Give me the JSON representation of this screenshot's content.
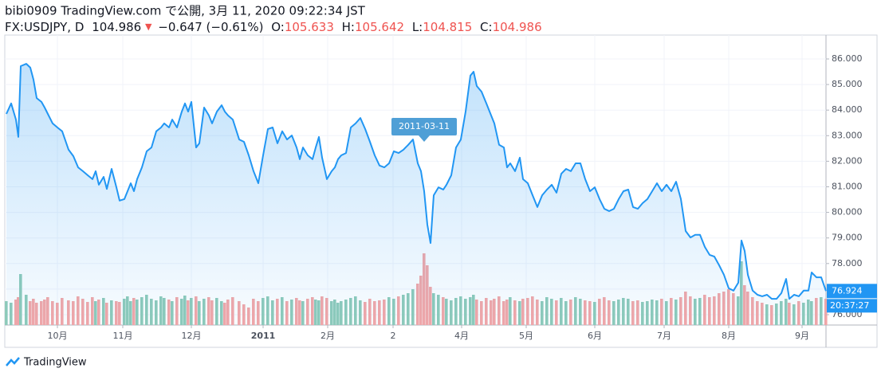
{
  "header": {
    "publisher": "bibi0909 TradingView.com で公開, 3月 11, 2020 09:22:34 JST",
    "symbol": "FX:USDJPY, D",
    "last": "104.986",
    "arrow": "▼",
    "change": "−0.647 (−0.61%)",
    "open_label": "O:",
    "open": "105.633",
    "high_label": "H:",
    "high": "105.642",
    "low_label": "L:",
    "low": "104.815",
    "close_label": "C:",
    "close": "104.986"
  },
  "footer": {
    "brand": "TradingView"
  },
  "chart_data": {
    "type": "area",
    "color": "#2196f3",
    "grid": true,
    "x": [
      0,
      1.5,
      3,
      3.75,
      4.5,
      6.25,
      7.5,
      8.5,
      9.5,
      11,
      12,
      13,
      14.5,
      16,
      17.5,
      19.5,
      21,
      22.5,
      24,
      25.5,
      27,
      28,
      29,
      30.5,
      31.5,
      33,
      34.5,
      35.5,
      37,
      38,
      39,
      40,
      41,
      42.5,
      44,
      45.5,
      47,
      48.5,
      49.5,
      51,
      52,
      53.5,
      55,
      56,
      57,
      58,
      59.5,
      60.5,
      62,
      63.5,
      64.5,
      66,
      67.5,
      68.5,
      69.5,
      71,
      73,
      74.5,
      76,
      77.5,
      79,
      80.5,
      82,
      83.5,
      85,
      86.5,
      88,
      89.5,
      91,
      92,
      93,
      94.5,
      96,
      97,
      98,
      99,
      100.5,
      102,
      103,
      104,
      105,
      106.5,
      108,
      109.5,
      111,
      112.5,
      114,
      115.5,
      117,
      118.5,
      120,
      121.5,
      123,
      124.5,
      126,
      127.5,
      129,
      130,
      131,
      132,
      133,
      134,
      135.5,
      137,
      138,
      139.5,
      141,
      142.5,
      144,
      145.5,
      146.5,
      147.5,
      149,
      150.5,
      152,
      153,
      154.5,
      156,
      157,
      158,
      159.5,
      161,
      162,
      163.5,
      165,
      166.5,
      168,
      169.5,
      171,
      172.5,
      174,
      175.5,
      177,
      178.5,
      180,
      181.5,
      183,
      184.5,
      186,
      187.5,
      189,
      190.5,
      192,
      193.5,
      195,
      196.5,
      198,
      199.5,
      201,
      202.5,
      204,
      205.5,
      207,
      208.5,
      210,
      211.5,
      213,
      214.5,
      216,
      217.5,
      219,
      220.5,
      222,
      223.5,
      225,
      226.5,
      228,
      229.5,
      230.5,
      231.5,
      232.5,
      234,
      235.5,
      237,
      238.5,
      240,
      241.5,
      243,
      244.5,
      245.5,
      247,
      248.5,
      250,
      251.5,
      252.5,
      254,
      255.5,
      257
    ],
    "values": [
      83.85,
      84.26,
      83.63,
      82.95,
      85.72,
      85.81,
      85.66,
      85.19,
      84.47,
      84.32,
      84.1,
      83.85,
      83.48,
      83.32,
      83.17,
      82.45,
      82.2,
      81.76,
      81.61,
      81.45,
      81.3,
      81.61,
      81.08,
      81.39,
      80.92,
      81.7,
      80.98,
      80.46,
      80.52,
      80.83,
      81.14,
      80.83,
      81.3,
      81.76,
      82.39,
      82.54,
      83.17,
      83.32,
      83.48,
      83.32,
      83.63,
      83.32,
      83.94,
      84.26,
      83.94,
      84.32,
      82.54,
      82.7,
      84.1,
      83.79,
      83.48,
      83.94,
      84.19,
      83.94,
      83.79,
      83.63,
      82.85,
      82.76,
      82.23,
      81.61,
      81.14,
      82.23,
      83.26,
      83.32,
      82.7,
      83.17,
      82.85,
      83.01,
      82.54,
      82.08,
      82.54,
      82.23,
      82.08,
      82.54,
      82.95,
      82.14,
      81.3,
      81.61,
      81.76,
      82.08,
      82.23,
      82.32,
      83.32,
      83.48,
      83.69,
      83.26,
      82.76,
      82.23,
      81.83,
      81.76,
      81.92,
      82.39,
      82.32,
      82.45,
      82.64,
      82.85,
      81.92,
      81.61,
      80.83,
      79.52,
      78.8,
      80.67,
      80.98,
      80.89,
      81.08,
      81.45,
      82.54,
      82.85,
      83.94,
      85.35,
      85.5,
      84.94,
      84.72,
      84.26,
      83.79,
      83.48,
      82.64,
      82.54,
      81.76,
      81.92,
      81.61,
      82.14,
      81.3,
      81.14,
      80.67,
      80.21,
      80.67,
      80.89,
      81.08,
      80.77,
      81.51,
      81.7,
      81.61,
      81.92,
      81.92,
      81.3,
      80.83,
      80.98,
      80.52,
      80.14,
      80.05,
      80.14,
      80.52,
      80.83,
      80.89,
      80.21,
      80.14,
      80.36,
      80.52,
      80.83,
      81.14,
      80.83,
      81.08,
      80.83,
      81.2,
      80.52,
      79.27,
      79.02,
      79.12,
      79.12,
      78.65,
      78.34,
      78.27,
      77.93,
      77.56,
      77.03,
      76.94,
      77.25,
      78.9,
      78.49,
      77.56,
      76.94,
      76.78,
      76.72,
      76.78,
      76.62,
      76.62,
      76.84,
      77.4,
      76.62,
      76.78,
      76.72,
      76.94,
      76.94,
      77.65,
      77.46,
      77.46,
      76.924
    ],
    "volume": {
      "up_color": "#8fcbb9",
      "down_color": "#f4a7a7",
      "vlim": [
        0,
        100
      ],
      "values": [
        30,
        28,
        32,
        35,
        64,
        38,
        30,
        33,
        28,
        30,
        32,
        35,
        30,
        28,
        34,
        31,
        30,
        36,
        33,
        29,
        35,
        30,
        32,
        34,
        28,
        31,
        30,
        29,
        33,
        36,
        30,
        34,
        32,
        35,
        38,
        33,
        31,
        36,
        34,
        32,
        30,
        35,
        33,
        37,
        31,
        34,
        36,
        30,
        33,
        35,
        31,
        34,
        30,
        28,
        32,
        35,
        30,
        26,
        22,
        33,
        30,
        34,
        36,
        31,
        33,
        35,
        30,
        32,
        34,
        31,
        30,
        33,
        35,
        32,
        31,
        36,
        34,
        30,
        32,
        28,
        30,
        32,
        34,
        36,
        31,
        29,
        33,
        30,
        31,
        32,
        35,
        33,
        36,
        38,
        40,
        45,
        52,
        62,
        90,
        75,
        48,
        40,
        38,
        35,
        33,
        31,
        34,
        36,
        33,
        35,
        38,
        32,
        30,
        34,
        31,
        33,
        36,
        30,
        32,
        35,
        31,
        30,
        33,
        34,
        36,
        32,
        30,
        35,
        33,
        31,
        34,
        30,
        32,
        35,
        33,
        31,
        30,
        29,
        33,
        35,
        31,
        30,
        32,
        34,
        33,
        30,
        31,
        29,
        30,
        32,
        31,
        33,
        30,
        34,
        32,
        35,
        42,
        36,
        33,
        34,
        38,
        35,
        36,
        40,
        42,
        45,
        40,
        36,
        80,
        50,
        42,
        35,
        30,
        28,
        26,
        25,
        27,
        30,
        33,
        28,
        26,
        30,
        28,
        32,
        30,
        34,
        35,
        33
      ]
    },
    "xlim": [
      0,
      257
    ],
    "xticks": [
      {
        "value": 16,
        "label": "10月"
      },
      {
        "value": 36.5,
        "label": "11月"
      },
      {
        "value": 58,
        "label": "12月"
      },
      {
        "value": 80.5,
        "label": "2011"
      },
      {
        "value": 100.75,
        "label": "2月"
      },
      {
        "value": 121.25,
        "label": "2"
      },
      {
        "value": 142.75,
        "label": "4月"
      },
      {
        "value": 163,
        "label": "5月"
      },
      {
        "value": 184.5,
        "label": "6月"
      },
      {
        "value": 206.25,
        "label": "7月"
      },
      {
        "value": 226.5,
        "label": "8月"
      },
      {
        "value": 249.5,
        "label": "9月"
      }
    ],
    "ylim": [
      75.595,
      86.903
    ],
    "yticks": [
      {
        "value": 76,
        "label": "76.000"
      },
      {
        "value": 77,
        "label": "77.000"
      },
      {
        "value": 78,
        "label": "78.000"
      },
      {
        "value": 79,
        "label": "79.000"
      },
      {
        "value": 80,
        "label": "80.000"
      },
      {
        "value": 81,
        "label": "81.000"
      },
      {
        "value": 82,
        "label": "82.000"
      },
      {
        "value": 83,
        "label": "83.000"
      },
      {
        "value": 84,
        "label": "84.000"
      },
      {
        "value": 85,
        "label": "85.000"
      },
      {
        "value": 86,
        "label": "86.000"
      }
    ],
    "annotation": {
      "text": "2011-03-11",
      "x": 131
    },
    "last_time": "20:37:27"
  }
}
